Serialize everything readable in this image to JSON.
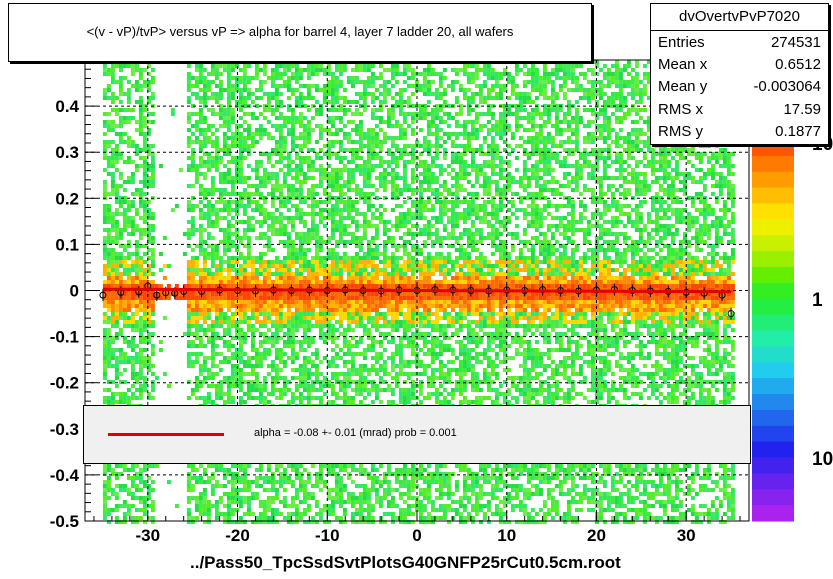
{
  "chart_data": {
    "type": "heatmap",
    "title": "<(v - vP)/tvP> versus   vP => alpha for barrel 4, layer 7 ladder 20, all wafers",
    "xlabel": "../Pass50_TpcSsdSvtPlotsG40GNFP25rCut0.5cm.root",
    "ylabel": "",
    "xlim": [
      -37,
      37
    ],
    "ylim": [
      -0.5,
      0.5
    ],
    "x_ticks": [
      "-30",
      "-20",
      "-10",
      "0",
      "10",
      "20",
      "30"
    ],
    "x_tick_values": [
      -30,
      -20,
      -10,
      0,
      10,
      20,
      30
    ],
    "y_ticks": [
      "0.4",
      "0.3",
      "0.2",
      "0.1",
      "0",
      "-0.1",
      "-0.2",
      "-0.3",
      "-0.4",
      "-0.5"
    ],
    "y_tick_values": [
      0.4,
      0.3,
      0.2,
      0.1,
      0,
      -0.1,
      -0.2,
      -0.3,
      -0.4,
      -0.5
    ],
    "grid": true,
    "colorbar_labels": [
      "10",
      "1",
      "10"
    ],
    "data_extent_x": [
      -35,
      35
    ],
    "empty_band_x": [
      -29.5,
      -26
    ],
    "profile": {
      "x": [
        -35,
        -33,
        -31,
        -30,
        -29,
        -28,
        -27,
        -26,
        -24,
        -22,
        -20,
        -18,
        -16,
        -14,
        -12,
        -10,
        -8,
        -6,
        -4,
        -2,
        0,
        2,
        4,
        6,
        8,
        10,
        12,
        14,
        16,
        18,
        20,
        22,
        24,
        26,
        28,
        30,
        32,
        34,
        35
      ],
      "y": [
        -0.01,
        -0.004,
        -0.003,
        0.01,
        -0.01,
        -0.005,
        -0.006,
        -0.002,
        -0.002,
        0.001,
        0.0,
        -0.001,
        0.001,
        0.0,
        0.001,
        0.0,
        0.001,
        0.0,
        -0.001,
        0.001,
        0.0,
        0.002,
        0.001,
        0.0,
        -0.001,
        0.001,
        0.0,
        0.002,
        0.0,
        -0.001,
        0.001,
        0.002,
        0.0,
        -0.001,
        -0.002,
        -0.004,
        -0.006,
        -0.01,
        -0.05
      ]
    },
    "fit": {
      "color": "#e00000",
      "slope": -8e-05
    }
  },
  "stats": {
    "name": "dvOvertvPvP7020",
    "rows": [
      {
        "key": "Entries",
        "value": "274531"
      },
      {
        "key": "Mean x",
        "value": "0.6512"
      },
      {
        "key": "Mean y",
        "value": "-0.003064"
      },
      {
        "key": "RMS x",
        "value": "17.59"
      },
      {
        "key": "RMS y",
        "value": "0.1877"
      }
    ]
  },
  "legend": {
    "fit_text": "alpha =   -0.08 +-  0.01 (mrad) prob = 0.001"
  },
  "colors": {
    "low": "#33ee33",
    "mid": "#ffd700",
    "high": "#ff4400",
    "fit": "#e00000"
  }
}
